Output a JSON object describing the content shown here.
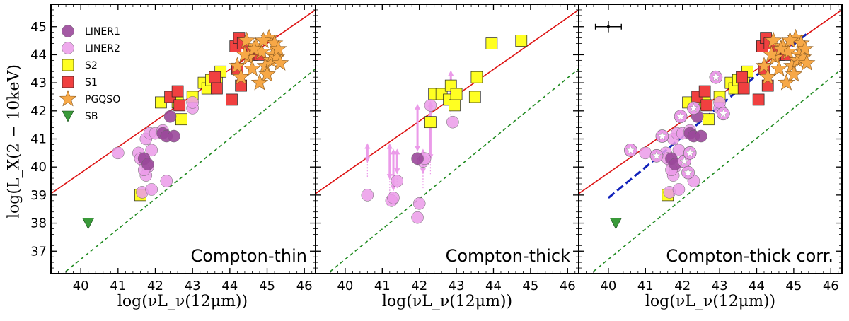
{
  "figure": {
    "ylabel": "log(L_X(2 − 10keV)",
    "xlabel": "log(νL_ν(12μm))"
  },
  "colors": {
    "LINER1": "#9a489a",
    "LINER2": "#eb9be9",
    "S2": "#ffff22",
    "S1": "#f04040",
    "PGQSO": "#f7a847",
    "SB": "#3a9a3a",
    "unity_line": "#dd1111",
    "offset_line": "#1f8a1f",
    "fit_line": "#1122bb"
  },
  "chart_data": [
    {
      "type": "scatter",
      "panel_label": "Compton-thin",
      "xlabel": "log(νL_ν(12μm))",
      "ylabel": "log(L_X(2 − 10keV)",
      "xlim": [
        39.2,
        46.3
      ],
      "ylim": [
        36.2,
        45.8
      ],
      "xticks": [
        "40",
        "41",
        "42",
        "43",
        "44",
        "45",
        "46"
      ],
      "yticks": [
        "37",
        "38",
        "39",
        "40",
        "41",
        "42",
        "43",
        "44",
        "45"
      ],
      "legend": {
        "placement": "top-left",
        "entries": [
          "LINER1",
          "LINER2",
          "S2",
          "S1",
          "PGQSO",
          "SB"
        ]
      },
      "lines": [
        {
          "name": "one-to-one",
          "style": "solid",
          "x": [
            39.2,
            46.3
          ],
          "y": [
            39.05,
            45.6
          ]
        },
        {
          "name": "offset",
          "style": "dashed",
          "x": [
            39.2,
            46.3
          ],
          "y": [
            35.85,
            43.5
          ]
        }
      ],
      "series": [
        {
          "name": "S2",
          "x": [
            41.6,
            42.15,
            42.6,
            42.7,
            43.0,
            43.3,
            43.4,
            43.5,
            43.65,
            43.75
          ],
          "y": [
            39.0,
            42.3,
            42.3,
            41.7,
            42.5,
            43.0,
            42.8,
            43.1,
            43.2,
            43.4
          ]
        },
        {
          "name": "S1",
          "x": [
            42.4,
            42.6,
            42.65,
            43.6,
            43.65,
            44.05,
            44.15,
            44.2,
            44.25,
            44.3,
            44.35,
            44.6,
            44.8
          ],
          "y": [
            42.5,
            42.7,
            42.2,
            43.2,
            42.8,
            42.4,
            44.3,
            43.5,
            44.6,
            42.9,
            44.4,
            44.0,
            44.0
          ]
        },
        {
          "name": "PGQSO",
          "x": [
            44.2,
            44.3,
            44.45,
            44.5,
            44.6,
            44.7,
            44.8,
            44.85,
            44.95,
            45.05,
            45.1,
            45.15,
            45.2,
            45.25,
            45.3,
            45.35,
            44.4,
            44.9,
            45.0,
            44.65
          ],
          "y": [
            43.6,
            43.2,
            44.5,
            43.9,
            43.5,
            44.3,
            43.0,
            44.1,
            43.6,
            44.6,
            43.8,
            44.0,
            44.4,
            43.9,
            44.2,
            43.7,
            44.0,
            44.5,
            43.3,
            44.2
          ]
        },
        {
          "name": "LINER2",
          "x": [
            41.0,
            41.55,
            41.65,
            41.7,
            41.75,
            41.8,
            41.85,
            41.9,
            42.0,
            41.75,
            41.9,
            42.3,
            42.2,
            43.0,
            43.0,
            41.6,
            41.7
          ],
          "y": [
            40.5,
            40.5,
            39.1,
            40.2,
            41.0,
            40.0,
            41.2,
            39.2,
            41.2,
            39.7,
            40.6,
            39.5,
            41.3,
            42.1,
            42.3,
            40.3,
            39.9
          ]
        },
        {
          "name": "LINER1",
          "x": [
            41.7,
            41.8,
            42.2,
            42.3,
            42.4,
            42.5
          ],
          "y": [
            40.3,
            40.1,
            41.2,
            41.1,
            41.8,
            41.1
          ]
        },
        {
          "name": "SB",
          "x": [
            40.2
          ],
          "y": [
            38.0
          ]
        }
      ]
    },
    {
      "type": "scatter",
      "panel_label": "Compton-thick",
      "xlabel": "log(νL_ν(12μm))",
      "xlim": [
        39.2,
        46.3
      ],
      "ylim": [
        36.2,
        45.8
      ],
      "xticks": [
        "40",
        "41",
        "42",
        "43",
        "44",
        "45",
        "46"
      ],
      "lines": [
        {
          "name": "one-to-one",
          "style": "solid",
          "x": [
            39.2,
            46.3
          ],
          "y": [
            39.05,
            45.6
          ]
        },
        {
          "name": "offset",
          "style": "dashed",
          "x": [
            39.2,
            46.3
          ],
          "y": [
            35.85,
            43.5
          ]
        }
      ],
      "series": [
        {
          "name": "S2",
          "x": [
            42.3,
            42.4,
            42.6,
            42.8,
            42.85,
            42.95,
            43.0,
            43.5,
            43.55,
            43.95,
            44.75
          ],
          "y": [
            41.6,
            42.6,
            42.6,
            42.4,
            42.9,
            42.2,
            42.6,
            42.5,
            43.2,
            44.4,
            44.5
          ]
        },
        {
          "name": "LINER2",
          "x": [
            40.6,
            41.25,
            41.3,
            41.4,
            41.95,
            42.0,
            42.1,
            42.15,
            42.3,
            42.9
          ],
          "y": [
            39.0,
            38.8,
            38.9,
            39.5,
            38.2,
            38.7,
            40.2,
            40.3,
            42.2,
            41.6
          ]
        },
        {
          "name": "LINER1",
          "x": [
            41.95
          ],
          "y": [
            40.3
          ]
        }
      ],
      "range_arrows": [
        {
          "x": 40.6,
          "y_low": 40.2,
          "y_high": 40.8
        },
        {
          "x": 41.2,
          "y_low": 39.6,
          "y_high": 40.8
        },
        {
          "x": 41.3,
          "y_low": 39.2,
          "y_high": 40.6
        },
        {
          "x": 41.4,
          "y_low": 39.8,
          "y_high": 40.6
        },
        {
          "x": 41.95,
          "y_low": 40.6,
          "y_high": 42.2
        },
        {
          "x": 42.1,
          "y_low": 39.8,
          "y_high": 40.6
        },
        {
          "x": 42.3,
          "y_low": 40.3,
          "y_high": 42.3
        },
        {
          "x": 42.85,
          "y_low": 42.4,
          "y_high": 43.4
        }
      ]
    },
    {
      "type": "scatter",
      "panel_label": "Compton-thick corr.",
      "xlabel": "log(νL_ν(12μm))",
      "xlim": [
        39.2,
        46.3
      ],
      "ylim": [
        36.2,
        45.8
      ],
      "xticks": [
        "40",
        "41",
        "42",
        "43",
        "44",
        "45",
        "46"
      ],
      "lines": [
        {
          "name": "one-to-one",
          "style": "solid",
          "x": [
            39.2,
            46.3
          ],
          "y": [
            39.05,
            45.6
          ]
        },
        {
          "name": "offset",
          "style": "dashed",
          "x": [
            39.2,
            46.3
          ],
          "y": [
            35.85,
            43.5
          ]
        },
        {
          "name": "fit",
          "style": "dashed",
          "x": [
            40.0,
            45.4
          ],
          "y": [
            38.9,
            44.8
          ]
        }
      ],
      "error_bar": {
        "x": 40.0,
        "y": 45.0,
        "x_err": 0.35,
        "y_err": 0.2
      },
      "series": [
        {
          "name": "S2",
          "x": [
            41.6,
            42.15,
            42.6,
            42.7,
            43.0,
            43.3,
            43.4,
            43.5,
            43.65,
            43.75
          ],
          "y": [
            39.0,
            42.3,
            42.3,
            41.7,
            42.5,
            43.0,
            42.8,
            43.1,
            43.2,
            43.4
          ]
        },
        {
          "name": "S1",
          "x": [
            42.4,
            42.6,
            42.65,
            43.6,
            43.65,
            44.05,
            44.15,
            44.2,
            44.25,
            44.3,
            44.35,
            44.6,
            44.8
          ],
          "y": [
            42.5,
            42.7,
            42.2,
            43.2,
            42.8,
            42.4,
            44.3,
            43.5,
            44.6,
            42.9,
            44.4,
            44.0,
            44.0
          ]
        },
        {
          "name": "PGQSO",
          "x": [
            44.2,
            44.3,
            44.45,
            44.5,
            44.6,
            44.7,
            44.8,
            44.85,
            44.95,
            45.05,
            45.1,
            45.15,
            45.2,
            45.25,
            45.3,
            45.35,
            44.4,
            44.9,
            45.0,
            44.65
          ],
          "y": [
            43.6,
            43.2,
            44.5,
            43.9,
            43.5,
            44.3,
            43.0,
            44.1,
            43.6,
            44.6,
            43.8,
            44.0,
            44.4,
            43.9,
            44.2,
            43.7,
            44.0,
            44.5,
            43.3,
            44.2
          ]
        },
        {
          "name": "LINER2",
          "x": [
            41.0,
            41.55,
            41.65,
            41.7,
            41.75,
            41.8,
            41.85,
            41.9,
            42.0,
            41.75,
            41.9,
            42.3,
            42.2,
            43.0,
            43.0,
            41.6,
            41.7
          ],
          "y": [
            40.5,
            40.5,
            39.1,
            40.2,
            41.0,
            40.0,
            41.2,
            39.2,
            41.2,
            39.7,
            40.6,
            39.5,
            41.3,
            42.1,
            42.3,
            40.3,
            39.9
          ]
        },
        {
          "name": "LINER1",
          "x": [
            41.7,
            41.8,
            42.2,
            42.3,
            42.4,
            42.5
          ],
          "y": [
            40.3,
            40.1,
            41.2,
            41.1,
            41.8,
            41.1
          ]
        },
        {
          "name": "SB",
          "x": [
            40.2
          ],
          "y": [
            38.0
          ]
        }
      ],
      "corrected_points": {
        "marker": "star-in-circle",
        "x": [
          40.6,
          41.3,
          41.45,
          41.95,
          42.05,
          42.15,
          42.2,
          42.3,
          42.9,
          43.1
        ],
        "y": [
          40.6,
          40.4,
          41.1,
          41.8,
          40.2,
          39.8,
          40.5,
          42.1,
          43.2,
          41.9
        ]
      }
    }
  ]
}
